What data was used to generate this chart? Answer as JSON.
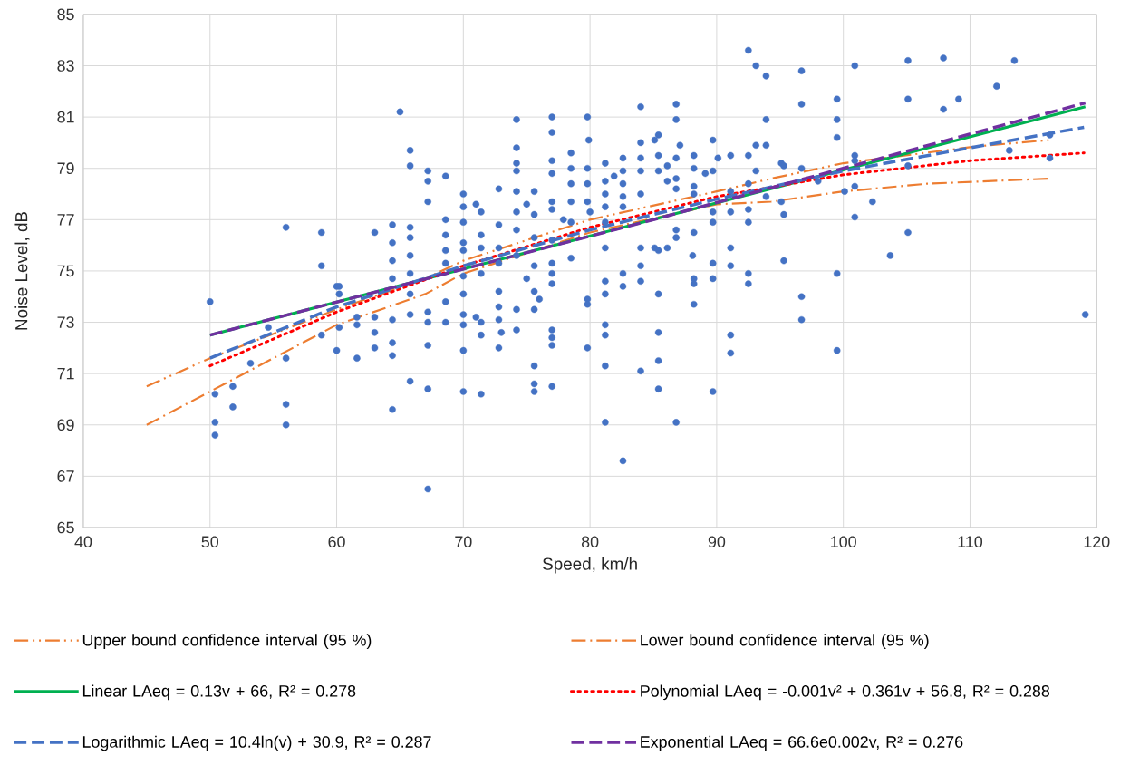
{
  "chart_data": {
    "type": "scatter",
    "xlabel": "Speed, km/h",
    "ylabel": "Noise Level, dB",
    "xlim": [
      40,
      120
    ],
    "ylim": [
      65,
      85
    ],
    "xticks": [
      40,
      50,
      60,
      70,
      80,
      90,
      100,
      110,
      120
    ],
    "yticks": [
      65,
      67,
      69,
      71,
      73,
      75,
      77,
      79,
      81,
      83,
      85
    ],
    "grid": true,
    "legend": "bottom",
    "series": [
      {
        "color": "#4472c4",
        "marker": "circle",
        "x": [
          50.0,
          50.4,
          50.4,
          50.4,
          51.8,
          51.8,
          53.2,
          54.6,
          56.0,
          56.0,
          56.0,
          56.0,
          58.8,
          58.8,
          58.8,
          60.0,
          60.2,
          60.2,
          60.2,
          60.0,
          61.6,
          61.6,
          61.6,
          63.0,
          63.0,
          63.0,
          63.0,
          64.4,
          64.4,
          64.4,
          64.4,
          64.4,
          64.4,
          64.4,
          64.4,
          65.0,
          65.8,
          65.8,
          65.8,
          65.8,
          65.8,
          65.8,
          65.8,
          65.8,
          65.8,
          67.2,
          67.2,
          67.2,
          67.2,
          67.2,
          67.2,
          67.2,
          67.2,
          68.6,
          68.6,
          68.6,
          68.6,
          68.6,
          68.6,
          68.6,
          70.0,
          70.0,
          70.0,
          70.0,
          70.0,
          70.0,
          70.0,
          70.0,
          70.0,
          70.0,
          70.0,
          71.0,
          71.0,
          71.4,
          71.4,
          71.4,
          71.4,
          71.4,
          71.4,
          71.4,
          72.8,
          72.8,
          72.8,
          72.8,
          72.8,
          72.8,
          72.8,
          73.0,
          72.8,
          74.2,
          74.2,
          74.2,
          74.2,
          74.2,
          74.2,
          74.2,
          74.2,
          74.2,
          74.2,
          75.0,
          75.0,
          75.6,
          75.6,
          75.6,
          75.6,
          75.6,
          75.6,
          75.6,
          75.6,
          75.6,
          76.0,
          77.0,
          77.0,
          77.0,
          77.0,
          77.0,
          77.0,
          77.0,
          77.0,
          77.0,
          77.0,
          77.0,
          77.0,
          77.0,
          77.0,
          77.9,
          78.5,
          78.5,
          78.5,
          78.5,
          78.5,
          78.5,
          79.8,
          79.9,
          79.8,
          79.8,
          79.8,
          80.0,
          79.8,
          79.8,
          79.8,
          81.2,
          81.2,
          81.2,
          81.2,
          81.2,
          81.2,
          81.2,
          81.2,
          81.2,
          81.2,
          81.2,
          81.2,
          81.9,
          82.6,
          82.6,
          82.6,
          82.6,
          82.6,
          82.6,
          82.6,
          82.6,
          84.0,
          84.0,
          84.0,
          84.0,
          84.0,
          84.0,
          84.0,
          84.0,
          84.0,
          85.1,
          85.4,
          85.4,
          85.4,
          85.1,
          85.4,
          85.4,
          85.4,
          85.4,
          85.4,
          86.1,
          86.1,
          86.1,
          86.8,
          86.8,
          87.1,
          86.8,
          86.8,
          86.8,
          86.8,
          86.8,
          86.8,
          88.2,
          88.2,
          88.2,
          88.2,
          88.2,
          88.1,
          88.2,
          88.2,
          88.2,
          89.1,
          89.7,
          89.7,
          89.7,
          89.7,
          89.7,
          89.7,
          89.7,
          90.1,
          91.1,
          91.1,
          91.1,
          91.1,
          91.1,
          91.1,
          91.1,
          92.5,
          93.1,
          93.9,
          93.9,
          93.1,
          93.9,
          92.5,
          93.1,
          92.5,
          92.5,
          92.5,
          93.9,
          92.5,
          92.5,
          95.1,
          95.3,
          95.1,
          95.3,
          95.3,
          96.7,
          96.7,
          96.7,
          96.7,
          96.7,
          98.0,
          99.5,
          99.5,
          99.5,
          99.5,
          99.5,
          100.1,
          100.9,
          100.9,
          100.9,
          100.9,
          100.9,
          102.3,
          103.7,
          105.1,
          105.1,
          105.1,
          105.1,
          107.9,
          107.9,
          109.1,
          112.1,
          113.5,
          113.1,
          116.3,
          116.3,
          119.1
        ],
        "values": [
          73.8,
          70.2,
          69.1,
          68.6,
          70.5,
          69.7,
          71.4,
          72.8,
          71.6,
          69.8,
          69.0,
          76.7,
          72.5,
          76.5,
          75.2,
          74.4,
          74.4,
          74.1,
          72.8,
          71.9,
          73.2,
          72.9,
          71.6,
          73.2,
          72.6,
          72.0,
          76.5,
          74.7,
          73.1,
          72.2,
          71.7,
          69.6,
          76.8,
          76.1,
          75.4,
          81.2,
          79.7,
          79.1,
          76.7,
          76.3,
          75.6,
          74.9,
          74.1,
          73.3,
          70.7,
          78.9,
          78.5,
          77.7,
          73.4,
          73.0,
          72.1,
          70.4,
          66.5,
          78.7,
          77.0,
          76.4,
          75.8,
          75.3,
          73.8,
          73.0,
          78.0,
          77.5,
          76.9,
          76.1,
          75.8,
          74.8,
          74.1,
          73.3,
          72.9,
          71.9,
          70.3,
          77.6,
          73.2,
          77.3,
          76.4,
          75.9,
          74.9,
          73.0,
          72.5,
          70.2,
          78.2,
          76.8,
          75.9,
          75.3,
          74.2,
          73.6,
          73.1,
          72.6,
          72.0,
          80.9,
          79.8,
          79.2,
          78.9,
          78.1,
          77.3,
          76.6,
          75.6,
          73.5,
          72.7,
          77.6,
          74.7,
          78.1,
          77.2,
          76.3,
          75.2,
          74.2,
          73.5,
          71.3,
          70.6,
          70.3,
          73.9,
          81.0,
          80.4,
          79.3,
          78.8,
          77.7,
          77.4,
          76.2,
          75.3,
          74.9,
          74.5,
          72.7,
          72.4,
          72.1,
          70.5,
          77.0,
          79.6,
          79.0,
          78.4,
          77.7,
          76.9,
          75.5,
          81.0,
          80.1,
          79.0,
          78.4,
          77.7,
          77.3,
          73.9,
          73.7,
          72.0,
          79.2,
          78.5,
          78.0,
          77.5,
          76.9,
          75.9,
          74.6,
          74.1,
          72.9,
          72.5,
          71.3,
          69.1,
          78.7,
          79.4,
          78.9,
          78.4,
          77.9,
          77.5,
          74.9,
          74.4,
          67.6,
          81.4,
          80.0,
          79.4,
          78.9,
          78.0,
          75.9,
          75.2,
          74.6,
          71.1,
          80.1,
          80.3,
          79.5,
          78.9,
          75.9,
          75.8,
          74.1,
          72.6,
          71.5,
          70.4,
          79.1,
          78.5,
          75.9,
          81.5,
          80.9,
          79.9,
          79.4,
          78.6,
          78.2,
          76.6,
          76.3,
          69.1,
          79.5,
          79.0,
          78.3,
          78.0,
          76.5,
          75.6,
          74.7,
          74.5,
          73.7,
          78.8,
          80.1,
          78.9,
          77.3,
          76.9,
          75.3,
          74.7,
          70.3,
          79.4,
          79.5,
          78.1,
          77.3,
          75.9,
          75.2,
          72.5,
          71.8,
          83.6,
          83.0,
          82.6,
          80.9,
          79.9,
          79.9,
          79.5,
          78.9,
          78.4,
          77.4,
          76.9,
          77.9,
          74.9,
          74.5,
          79.2,
          79.1,
          77.7,
          77.2,
          75.4,
          82.8,
          81.5,
          79.0,
          74.0,
          73.1,
          78.5,
          81.7,
          80.9,
          80.2,
          74.9,
          71.9,
          78.1,
          83.0,
          79.5,
          79.3,
          78.3,
          77.1,
          77.7,
          75.6,
          83.2,
          81.7,
          79.1,
          76.5,
          83.3,
          81.3,
          81.7,
          82.2,
          83.2,
          79.7,
          80.3,
          79.4,
          73.3
        ]
      },
      {
        "type": "line",
        "name": "Upper bound confidence interval (95 %)",
        "color": "#ed7d31",
        "line_style": "dashdotdot",
        "x": [
          45,
          50,
          60,
          67,
          70,
          80,
          90,
          94.3,
          100,
          110.4,
          116.2
        ],
        "values": [
          70.5,
          71.6,
          73.5,
          74.7,
          75.4,
          77.0,
          78.1,
          78.6,
          79.2,
          79.85,
          80.1
        ]
      },
      {
        "type": "line",
        "name": "Lower bound confidence interval (95 %)",
        "color": "#ed7d31",
        "line_style": "dashdot",
        "x": [
          45,
          50,
          60,
          67,
          70,
          80,
          90,
          94.3,
          100,
          106.6,
          116.2
        ],
        "values": [
          69.0,
          70.3,
          72.9,
          74.1,
          74.9,
          76.5,
          77.6,
          77.7,
          78.1,
          78.4,
          78.6
        ]
      },
      {
        "type": "line",
        "name": "Linear LAeq = 0.13v + 66, R² = 0.278",
        "color": "#00b050",
        "line_style": "solid",
        "x": [
          50,
          119.1
        ],
        "values": [
          72.5,
          81.4
        ]
      },
      {
        "type": "line",
        "name": "Polynomial LAeq = -0.001v² + 0.361v + 56.8, R² = 0.288",
        "color": "#ff0000",
        "line_style": "dotted",
        "x": [
          50,
          60,
          70,
          80,
          90,
          100,
          110,
          119
        ],
        "values": [
          71.3,
          73.4,
          75.2,
          76.7,
          77.9,
          78.75,
          79.3,
          79.6
        ]
      },
      {
        "type": "line",
        "name": "Logarithmic LAeq = 10.4ln(v) + 30.9, R² = 0.287",
        "color": "#4472c4",
        "line_style": "dashed",
        "x": [
          50,
          60,
          70,
          80,
          90,
          100,
          110,
          119
        ],
        "values": [
          71.6,
          73.6,
          75.2,
          76.6,
          77.8,
          78.9,
          79.8,
          80.6
        ]
      },
      {
        "type": "line",
        "name": "Exponential LAeq = 66.6e0.002v, R² = 0.276",
        "color": "#7030a0",
        "line_style": "dashed",
        "x": [
          50,
          85,
          119.1
        ],
        "values": [
          72.5,
          77.0,
          81.55
        ]
      }
    ]
  }
}
